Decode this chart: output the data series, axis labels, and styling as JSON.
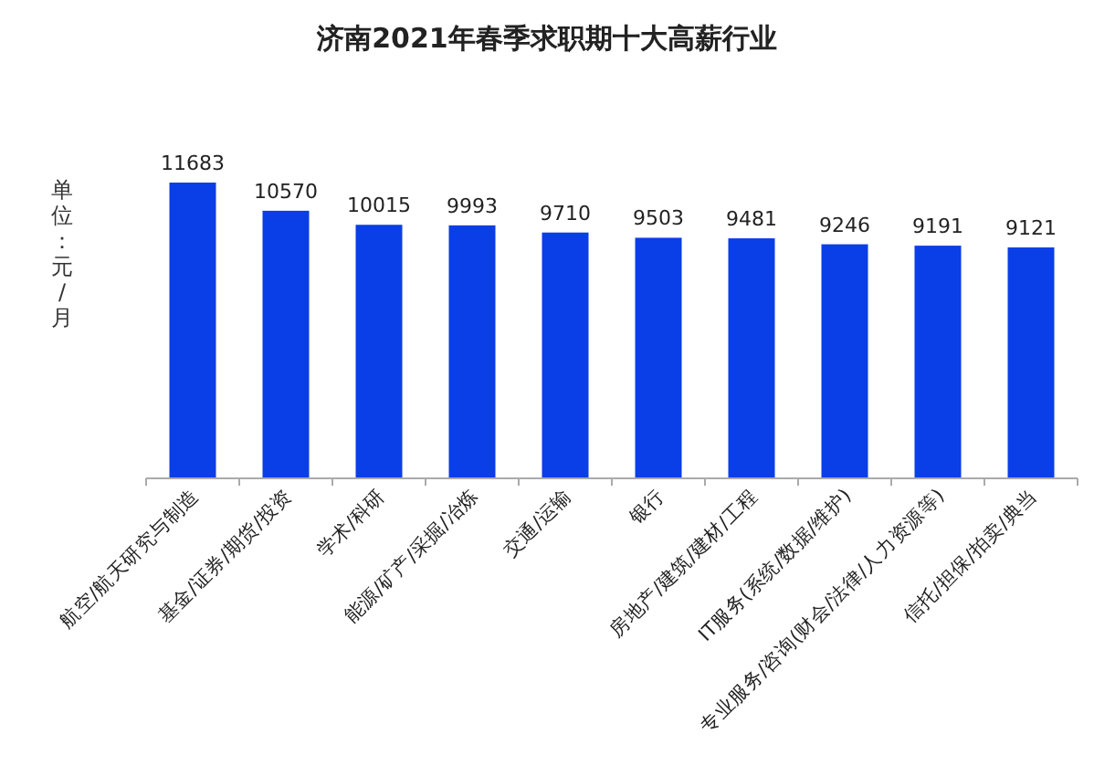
{
  "chart_data": {
    "type": "bar",
    "title": "济南2021年春季求职期十大高薪行业",
    "ylabel": "单位：元/月",
    "categories": [
      "航空/航天研究与制造",
      "基金/证券/期货/投资",
      "学术/科研",
      "能源/矿产/采掘/冶炼",
      "交通/运输",
      "银行",
      "房地产/建筑/建材/工程",
      "IT服务(系统/数据/维护)",
      "专业服务/咨询(财会/法律/人力资源等)",
      "信托/担保/拍卖/典当"
    ],
    "values": [
      11683,
      10570,
      10015,
      9993,
      9710,
      9503,
      9481,
      9246,
      9191,
      9121
    ],
    "color": "#0a3ee6",
    "data_labels": true
  }
}
